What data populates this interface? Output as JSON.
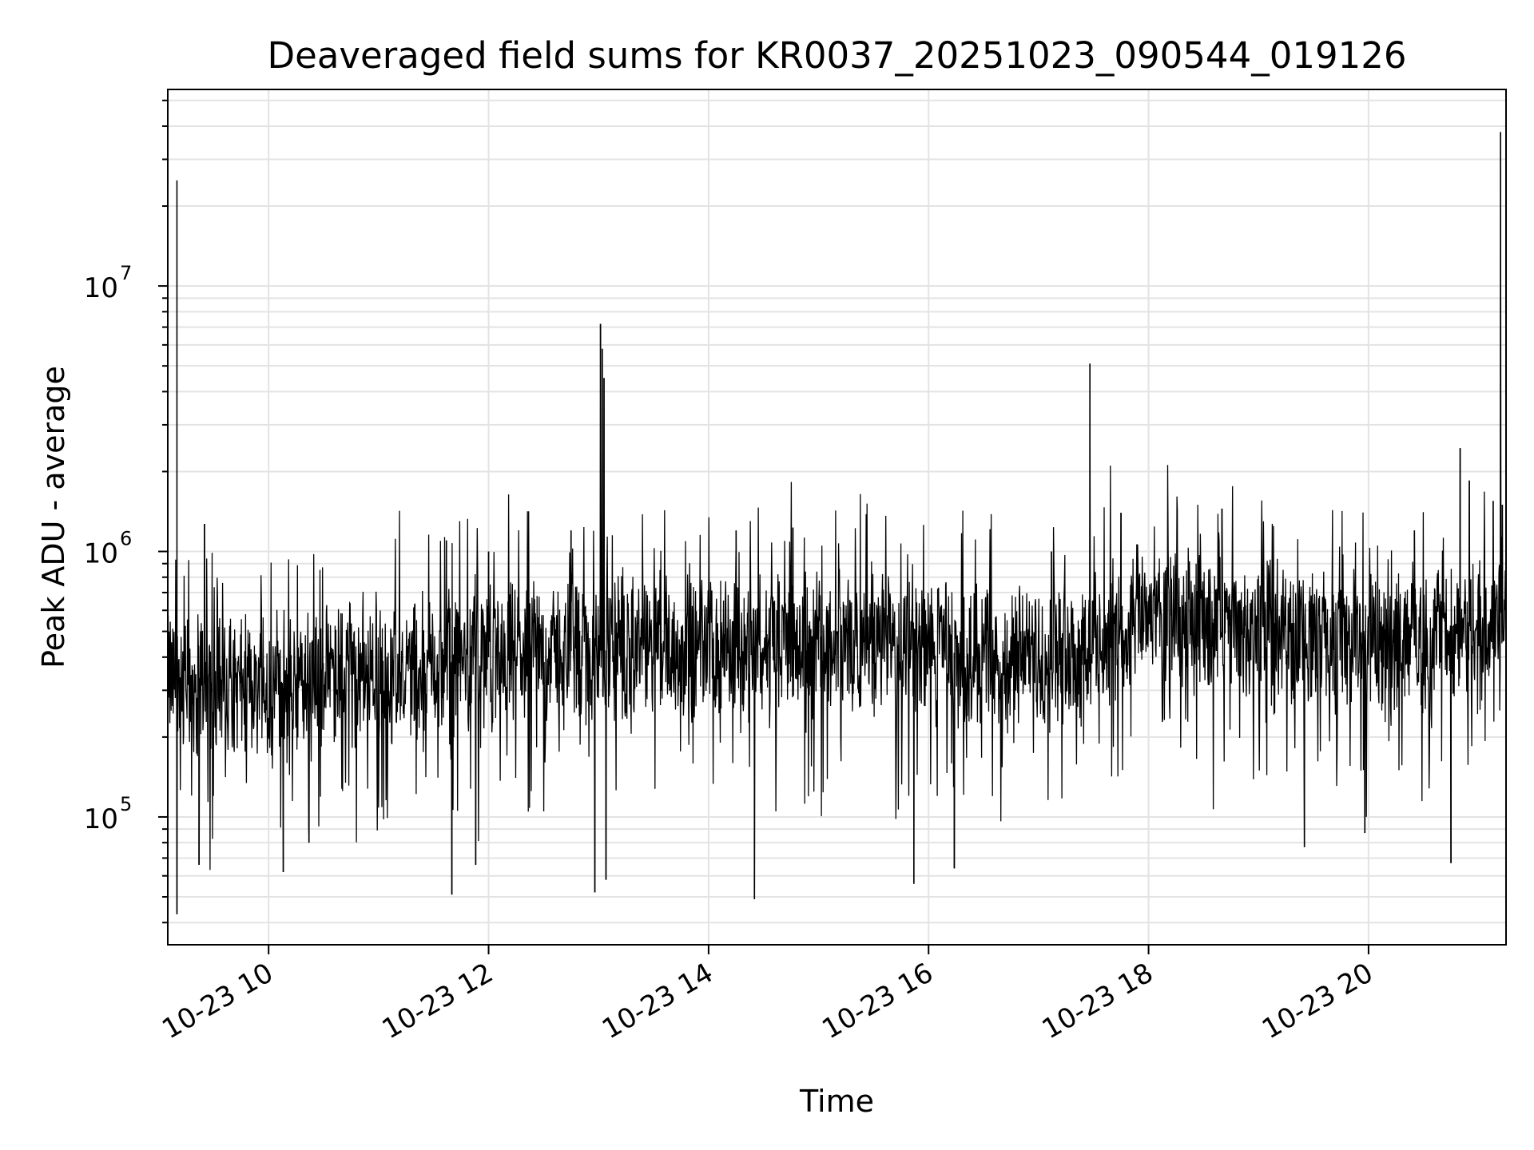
{
  "chart_data": {
    "type": "line",
    "title": "Deaveraged field sums for KR0037_20251023_090544_019126",
    "xlabel": "Time",
    "ylabel": "Peak ADU - average",
    "y_scale": "log",
    "grid": true,
    "line_color": "#000000",
    "x_tick_labels": [
      "10-23 10",
      "10-23 12",
      "10-23 14",
      "10-23 16",
      "10-23 18",
      "10-23 20"
    ],
    "x_tick_hours": [
      10,
      12,
      14,
      16,
      18,
      20
    ],
    "xlim": [
      "2025-10-23 09:05",
      "2025-10-23 21:15"
    ],
    "ylim": [
      33000,
      55000000
    ],
    "y_tick_labels": [
      {
        "base": "10",
        "exp": "5",
        "value": 100000
      },
      {
        "base": "10",
        "exp": "6",
        "value": 1000000
      },
      {
        "base": "10",
        "exp": "7",
        "value": 10000000
      }
    ],
    "baseline": [
      {
        "x": "2025-10-23 09:05",
        "y": 330000
      },
      {
        "x": "2025-10-23 10:00",
        "y": 300000
      },
      {
        "x": "2025-10-23 11:30",
        "y": 380000
      },
      {
        "x": "2025-10-23 12:30",
        "y": 420000
      },
      {
        "x": "2025-10-23 14:00",
        "y": 430000
      },
      {
        "x": "2025-10-23 15:30",
        "y": 460000
      },
      {
        "x": "2025-10-23 16:30",
        "y": 400000
      },
      {
        "x": "2025-10-23 17:30",
        "y": 430000
      },
      {
        "x": "2025-10-23 18:00",
        "y": 600000
      },
      {
        "x": "2025-10-23 19:00",
        "y": 480000
      },
      {
        "x": "2025-10-23 20:30",
        "y": 440000
      },
      {
        "x": "2025-10-23 21:15",
        "y": 600000
      }
    ],
    "spikes": [
      {
        "x": "2025-10-23 09:10",
        "y": 25000000
      },
      {
        "x": "2025-10-23 09:10",
        "y": 43000
      },
      {
        "x": "2025-10-23 09:25",
        "y": 1270000
      },
      {
        "x": "2025-10-23 09:22",
        "y": 66000
      },
      {
        "x": "2025-10-23 10:08",
        "y": 62000
      },
      {
        "x": "2025-10-23 10:22",
        "y": 80000
      },
      {
        "x": "2025-10-23 11:37",
        "y": 1100000
      },
      {
        "x": "2025-10-23 11:40",
        "y": 51000
      },
      {
        "x": "2025-10-23 11:53",
        "y": 66000
      },
      {
        "x": "2025-10-23 12:00",
        "y": 1000000
      },
      {
        "x": "2025-10-23 12:45",
        "y": 1200000
      },
      {
        "x": "2025-10-23 12:58",
        "y": 52000
      },
      {
        "x": "2025-10-23 13:01",
        "y": 7200000
      },
      {
        "x": "2025-10-23 13:02",
        "y": 5800000
      },
      {
        "x": "2025-10-23 13:03",
        "y": 4500000
      },
      {
        "x": "2025-10-23 13:04",
        "y": 58000
      },
      {
        "x": "2025-10-23 14:25",
        "y": 49000
      },
      {
        "x": "2025-10-23 14:15",
        "y": 1200000
      },
      {
        "x": "2025-10-23 14:46",
        "y": 1230000
      },
      {
        "x": "2025-10-23 15:52",
        "y": 56000
      },
      {
        "x": "2025-10-23 16:14",
        "y": 64000
      },
      {
        "x": "2025-10-23 17:07",
        "y": 1000000
      },
      {
        "x": "2025-10-23 17:28",
        "y": 5100000
      },
      {
        "x": "2025-10-23 17:45",
        "y": 1400000
      },
      {
        "x": "2025-10-23 18:40",
        "y": 1450000
      },
      {
        "x": "2025-10-23 19:25",
        "y": 77000
      },
      {
        "x": "2025-10-23 19:58",
        "y": 87000
      },
      {
        "x": "2025-10-23 20:25",
        "y": 1200000
      },
      {
        "x": "2025-10-23 20:45",
        "y": 67000
      },
      {
        "x": "2025-10-23 20:50",
        "y": 2450000
      },
      {
        "x": "2025-10-23 20:55",
        "y": 1850000
      },
      {
        "x": "2025-10-23 21:08",
        "y": 1550000
      },
      {
        "x": "2025-10-23 21:12",
        "y": 38000000
      },
      {
        "x": "2025-10-23 21:13",
        "y": 1500000
      }
    ]
  }
}
